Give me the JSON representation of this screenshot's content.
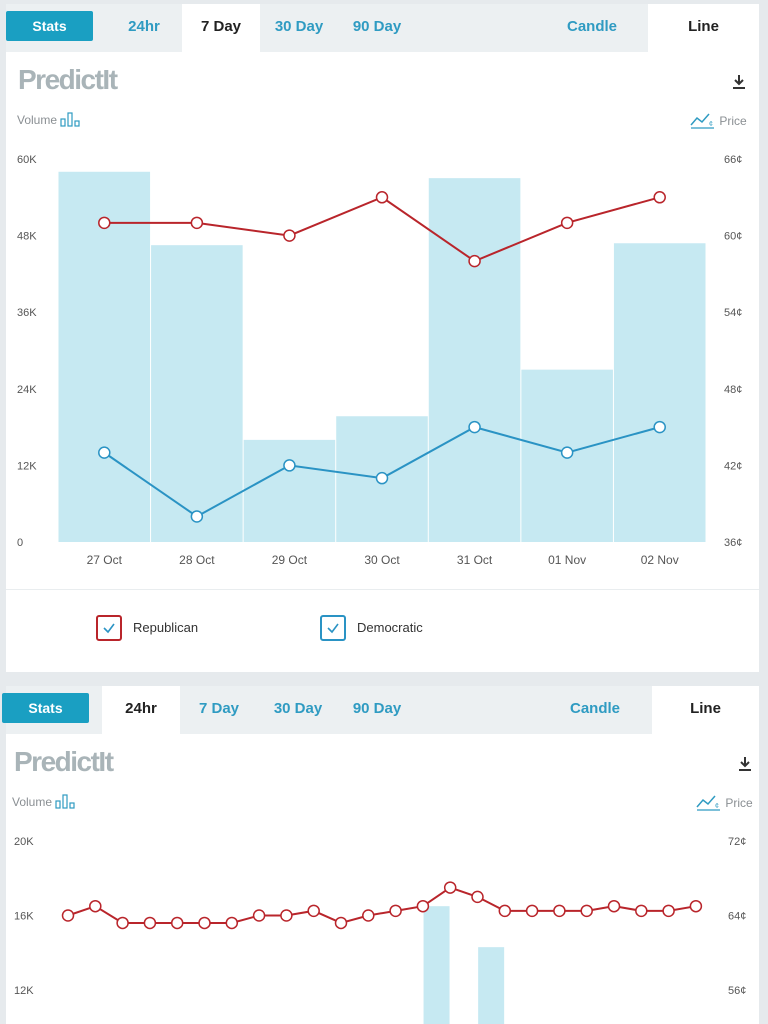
{
  "panel1": {
    "tabs": [
      {
        "label": "Stats"
      },
      {
        "label": "24hr"
      },
      {
        "label": "7 Day"
      },
      {
        "label": "30 Day"
      },
      {
        "label": "90 Day"
      },
      {
        "label": "Candle"
      },
      {
        "label": "Line"
      }
    ],
    "active_range": "7 Day",
    "active_style": "Line",
    "logo": "PredictIt",
    "volume_label": "Volume",
    "price_label": "Price",
    "legend": [
      {
        "label": "Republican",
        "color": "#b9252b"
      },
      {
        "label": "Democratic",
        "color": "#2a93c4"
      }
    ]
  },
  "panel2": {
    "tabs": [
      {
        "label": "Stats"
      },
      {
        "label": "24hr"
      },
      {
        "label": "7 Day"
      },
      {
        "label": "30 Day"
      },
      {
        "label": "90 Day"
      },
      {
        "label": "Candle"
      },
      {
        "label": "Line"
      }
    ],
    "active_range": "24hr",
    "active_style": "Line",
    "logo": "PredictIt",
    "volume_label": "Volume",
    "price_label": "Price"
  },
  "icons": {
    "download": "download-icon",
    "volume": "bar-chart-icon",
    "price": "line-chart-icon",
    "check": "check-icon"
  },
  "chart_data": [
    {
      "type": "bar+line",
      "categories": [
        "27 Oct",
        "28 Oct",
        "29 Oct",
        "30 Oct",
        "31 Oct",
        "01 Nov",
        "02 Nov"
      ],
      "volume": {
        "values": [
          58000,
          46500,
          16000,
          19700,
          57000,
          27000,
          46800
        ],
        "color": "#c6e9f2"
      },
      "y_left": {
        "ticks": [
          "0",
          "12K",
          "24K",
          "36K",
          "48K",
          "60K"
        ],
        "range": [
          0,
          60000
        ]
      },
      "y_right": {
        "ticks": [
          "36¢",
          "42¢",
          "48¢",
          "54¢",
          "60¢",
          "66¢"
        ],
        "range": [
          36,
          66
        ]
      },
      "series": [
        {
          "name": "Republican",
          "color": "#b9252b",
          "values": [
            61,
            61,
            60,
            63,
            58,
            61,
            63
          ]
        },
        {
          "name": "Democratic",
          "color": "#2a93c4",
          "values": [
            43,
            38,
            42,
            41,
            45,
            43,
            45
          ]
        }
      ],
      "grid": false
    },
    {
      "type": "bar+line",
      "y_left": {
        "ticks": [
          "12K",
          "16K",
          "20K"
        ],
        "range": [
          12000,
          20000
        ]
      },
      "y_right": {
        "ticks": [
          "56¢",
          "64¢",
          "72¢"
        ],
        "range": [
          56,
          72
        ]
      },
      "volume": {
        "values": [
          0,
          0,
          0,
          0,
          0,
          0,
          0,
          0,
          0,
          0,
          0,
          0,
          0,
          16500,
          0,
          14300,
          0,
          0,
          0,
          0,
          0,
          0,
          0
        ],
        "color": "#c6e9f2"
      },
      "series": [
        {
          "color": "#b9252b",
          "values": [
            64,
            65,
            63.2,
            63.2,
            63.2,
            63.2,
            63.2,
            64,
            64,
            64.5,
            63.2,
            64,
            64.5,
            65,
            67,
            66,
            64.5,
            64.5,
            64.5,
            64.5,
            65,
            64.5,
            64.5,
            65
          ]
        }
      ],
      "grid": false
    }
  ]
}
